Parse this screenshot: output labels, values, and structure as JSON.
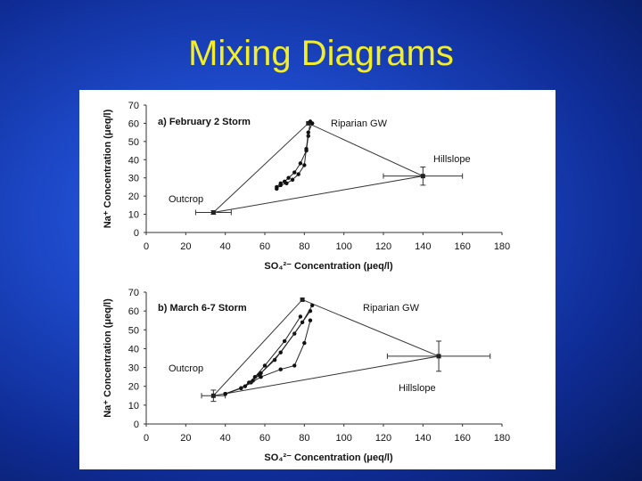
{
  "slide": {
    "title": "Mixing Diagrams"
  },
  "chart_data": [
    {
      "type": "scatter",
      "title": "a) February 2 Storm",
      "xlabel": "SO₄²⁻ Concentration (μeq/l)",
      "ylabel": "Na⁺ Concentration (μeq/l)",
      "xlim": [
        0,
        180
      ],
      "ylim": [
        0,
        70
      ],
      "x_ticks": [
        "0",
        "20",
        "40",
        "60",
        "80",
        "100",
        "120",
        "140",
        "160",
        "180"
      ],
      "y_ticks": [
        "0",
        "10",
        "20",
        "30",
        "40",
        "50",
        "60",
        "70"
      ],
      "grid": false,
      "end_members": [
        {
          "name": "Riparian GW",
          "x": 82,
          "y": 60,
          "err_x": 0,
          "err_y": 0
        },
        {
          "name": "Hillslope",
          "x": 140,
          "y": 31,
          "err_x": 20,
          "err_y": 5
        },
        {
          "name": "Outcrop",
          "x": 34,
          "y": 11,
          "err_x": 9,
          "err_y": 1
        }
      ],
      "series": [
        {
          "x": [
            66,
            68,
            70,
            72,
            75,
            78,
            81,
            82,
            83
          ],
          "y": [
            25,
            27,
            28,
            30,
            33,
            38,
            45,
            53,
            61
          ]
        },
        {
          "x": [
            66,
            68,
            71,
            74,
            77,
            80,
            81,
            82,
            84
          ],
          "y": [
            24,
            26,
            27,
            29,
            32,
            37,
            46,
            55,
            60
          ]
        }
      ]
    },
    {
      "type": "scatter",
      "title": "b) March 6-7 Storm",
      "xlabel": "SO₄²⁻ Concentration (μeq/l)",
      "ylabel": "Na⁺ Concentration (μeq/l)",
      "xlim": [
        0,
        180
      ],
      "ylim": [
        0,
        70
      ],
      "x_ticks": [
        "0",
        "20",
        "40",
        "60",
        "80",
        "100",
        "120",
        "140",
        "160",
        "180"
      ],
      "y_ticks": [
        "0",
        "10",
        "20",
        "30",
        "40",
        "50",
        "60",
        "70"
      ],
      "grid": false,
      "end_members": [
        {
          "name": "Riparian GW",
          "x": 79,
          "y": 66,
          "err_x": 0,
          "err_y": 0
        },
        {
          "name": "Hillslope",
          "x": 148,
          "y": 36,
          "err_x": 26,
          "err_y": 8
        },
        {
          "name": "Outcrop",
          "x": 34,
          "y": 15,
          "err_x": 6,
          "err_y": 3
        }
      ],
      "series": [
        {
          "x": [
            40,
            48,
            52,
            55,
            60,
            70,
            78
          ],
          "y": [
            16,
            19,
            22,
            25,
            31,
            44,
            57
          ]
        },
        {
          "x": [
            40,
            48,
            53,
            57,
            65,
            75,
            83
          ],
          "y": [
            16,
            19,
            22,
            26,
            34,
            48,
            60
          ]
        },
        {
          "x": [
            40,
            48,
            54,
            58,
            68,
            79,
            84
          ],
          "y": [
            16,
            19,
            23,
            27,
            38,
            54,
            63
          ]
        },
        {
          "x": [
            40,
            50,
            58,
            68,
            75,
            80,
            83
          ],
          "y": [
            16,
            20,
            25,
            29,
            31,
            43,
            55
          ]
        }
      ]
    }
  ]
}
